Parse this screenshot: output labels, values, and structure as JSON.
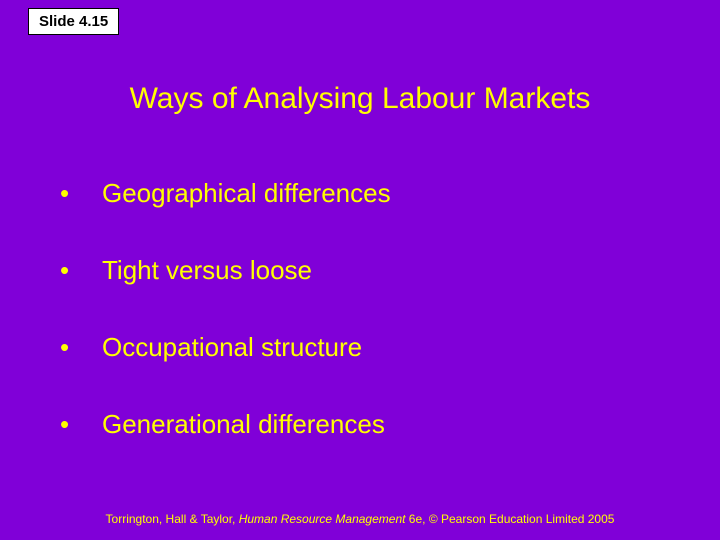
{
  "slide": {
    "number_label": "Slide 4.15",
    "title": "Ways of Analysing Labour Markets",
    "bullets": [
      "Geographical differences",
      "Tight versus loose",
      "Occupational structure",
      "Generational differences"
    ],
    "footer": {
      "authors": "Torrington, Hall & Taylor, ",
      "book": "Human Resource Management",
      "rest": " 6e, © Pearson Education Limited 2005"
    }
  },
  "style": {
    "background_color": "#8000d8",
    "text_color": "#ffff00",
    "slide_label_bg": "#ffffff",
    "slide_label_border": "#000000",
    "title_fontsize": 30,
    "bullet_fontsize": 26,
    "footer_fontsize": 12,
    "bullet_spacing": 46
  }
}
